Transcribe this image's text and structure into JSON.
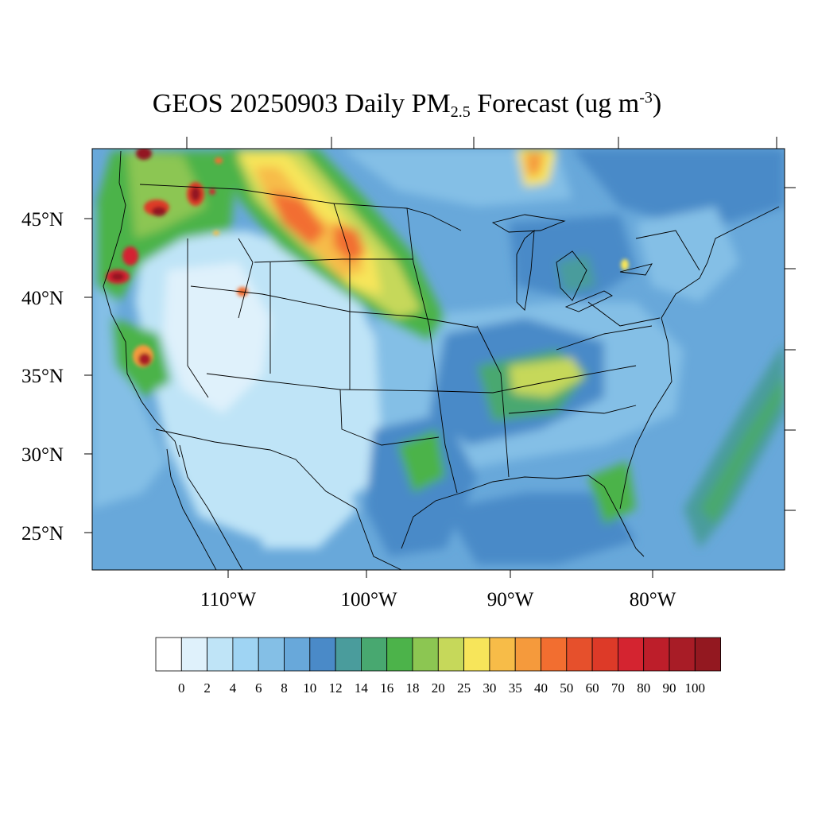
{
  "title": {
    "prefix": "GEOS 20250903 Daily PM",
    "subscript": "2.5",
    "middle": " Forecast (ug m",
    "superscript": "-3",
    "suffix": ")"
  },
  "map": {
    "lat_labels": [
      "45°N",
      "40°N",
      "35°N",
      "30°N",
      "25°N"
    ],
    "lon_labels": [
      "110°W",
      "100°W",
      "90°W",
      "80°W"
    ]
  },
  "colorbar": {
    "labels": [
      "0",
      "2",
      "4",
      "6",
      "8",
      "10",
      "12",
      "14",
      "16",
      "18",
      "20",
      "25",
      "30",
      "35",
      "40",
      "50",
      "60",
      "70",
      "80",
      "90",
      "100"
    ],
    "colors": [
      "#ffffff",
      "#dff1fb",
      "#bfe4f7",
      "#9fd4f3",
      "#84bfe6",
      "#68a8da",
      "#4a8ac8",
      "#4a9c9c",
      "#48a870",
      "#4cb34a",
      "#8cc652",
      "#c6d85a",
      "#f7e55a",
      "#f7bc48",
      "#f59a3c",
      "#f26e30",
      "#e6502c",
      "#dd3a28",
      "#d42430",
      "#bd1e2a",
      "#a81c26",
      "#931820"
    ]
  }
}
